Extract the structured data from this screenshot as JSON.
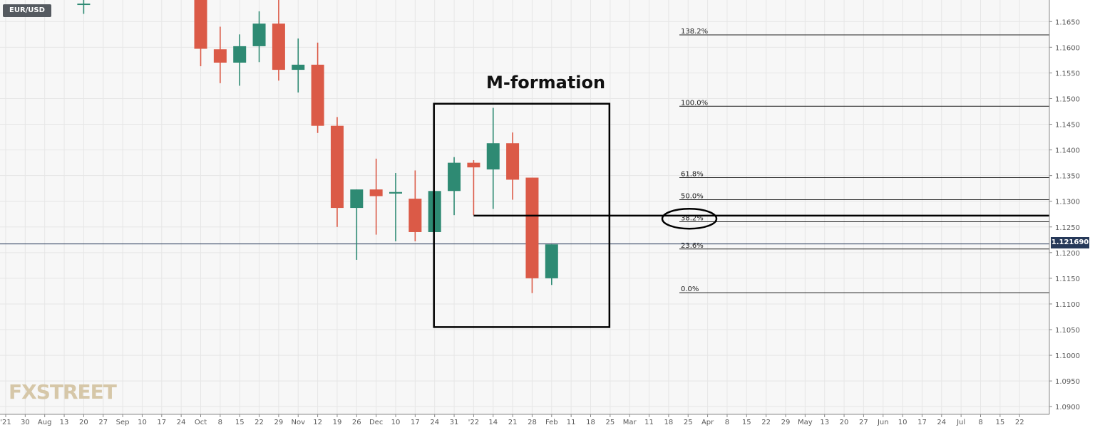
{
  "symbol": "EUR/USD",
  "watermark": "FXSTREET",
  "annotation": {
    "title": "M-formation"
  },
  "current_price": "1.121690",
  "colors": {
    "up": "#2e8a73",
    "down": "#db5a47",
    "grid": "#e6e6e6",
    "fib": "#222222"
  },
  "chart_data": {
    "type": "candlestick",
    "title": "",
    "xlabel": "",
    "ylabel": "",
    "ylim": [
      1.0885,
      1.1692
    ],
    "grid": true,
    "y_ticks": [
      "1.1650",
      "1.1600",
      "1.1550",
      "1.1500",
      "1.1450",
      "1.1400",
      "1.1350",
      "1.1300",
      "1.1250",
      "1.1200",
      "1.1150",
      "1.1100",
      "1.1050",
      "1.1000",
      "1.0950",
      "1.0900"
    ],
    "x_ticks": [
      "'21",
      "30",
      "Aug",
      "13",
      "20",
      "27",
      "Sep",
      "10",
      "17",
      "24",
      "Oct",
      "8",
      "15",
      "22",
      "29",
      "Nov",
      "12",
      "19",
      "26",
      "Dec",
      "10",
      "17",
      "24",
      "31",
      "'22",
      "14",
      "21",
      "28",
      "Feb",
      "11",
      "18",
      "25",
      "Mar",
      "11",
      "18",
      "25",
      "Apr",
      "8",
      "15",
      "22",
      "29",
      "May",
      "13",
      "20",
      "27",
      "Jun",
      "10",
      "17",
      "24",
      "Jul",
      "8",
      "15",
      "22"
    ],
    "candles": [
      {
        "slot": 4,
        "open": 1.1685,
        "high": 1.17,
        "low": 1.1665,
        "close": 1.1685
      },
      {
        "slot": 10,
        "open": 1.172,
        "high": 1.1725,
        "low": 1.1563,
        "close": 1.1597
      },
      {
        "slot": 11,
        "open": 1.1596,
        "high": 1.164,
        "low": 1.153,
        "close": 1.157
      },
      {
        "slot": 12,
        "open": 1.157,
        "high": 1.1625,
        "low": 1.1525,
        "close": 1.1602
      },
      {
        "slot": 13,
        "open": 1.1602,
        "high": 1.167,
        "low": 1.1571,
        "close": 1.1646
      },
      {
        "slot": 14,
        "open": 1.1646,
        "high": 1.1695,
        "low": 1.1535,
        "close": 1.1556
      },
      {
        "slot": 15,
        "open": 1.1556,
        "high": 1.1617,
        "low": 1.1512,
        "close": 1.1566
      },
      {
        "slot": 16,
        "open": 1.1566,
        "high": 1.1609,
        "low": 1.1433,
        "close": 1.1447
      },
      {
        "slot": 17,
        "open": 1.1447,
        "high": 1.1464,
        "low": 1.125,
        "close": 1.1287
      },
      {
        "slot": 18,
        "open": 1.1287,
        "high": 1.1323,
        "low": 1.1186,
        "close": 1.1323
      },
      {
        "slot": 19,
        "open": 1.1323,
        "high": 1.1383,
        "low": 1.1235,
        "close": 1.131
      },
      {
        "slot": 20,
        "open": 1.1315,
        "high": 1.1355,
        "low": 1.1222,
        "close": 1.1318
      },
      {
        "slot": 21,
        "open": 1.1305,
        "high": 1.136,
        "low": 1.1222,
        "close": 1.124
      },
      {
        "slot": 22,
        "open": 1.124,
        "high": 1.132,
        "low": 1.124,
        "close": 1.132
      },
      {
        "slot": 23,
        "open": 1.132,
        "high": 1.1386,
        "low": 1.1273,
        "close": 1.1375
      },
      {
        "slot": 24,
        "open": 1.1375,
        "high": 1.138,
        "low": 1.1273,
        "close": 1.1366
      },
      {
        "slot": 25,
        "open": 1.1362,
        "high": 1.1482,
        "low": 1.1285,
        "close": 1.1413
      },
      {
        "slot": 26,
        "open": 1.1413,
        "high": 1.1434,
        "low": 1.1303,
        "close": 1.1342
      },
      {
        "slot": 27,
        "open": 1.1346,
        "high": 1.1346,
        "low": 1.1121,
        "close": 1.115
      },
      {
        "slot": 28,
        "open": 1.115,
        "high": 1.1216,
        "low": 1.1137,
        "close": 1.1216
      }
    ],
    "fibonacci": [
      {
        "label": "138.2%",
        "value": 1.1624
      },
      {
        "label": "100.0%",
        "value": 1.1485
      },
      {
        "label": "61.8%",
        "value": 1.1346
      },
      {
        "label": "50.0%",
        "value": 1.1303
      },
      {
        "label": "38.2%",
        "value": 1.126
      },
      {
        "label": "23.6%",
        "value": 1.1207
      },
      {
        "label": "0.0%",
        "value": 1.1122
      }
    ],
    "box": {
      "slot_start": 22.0,
      "slot_end": 31.0,
      "price_top": 1.149,
      "price_bottom": 1.1055
    },
    "neckline": {
      "slot_start": 24.0,
      "price": 1.1272
    },
    "current_price_value": 1.12169
  }
}
